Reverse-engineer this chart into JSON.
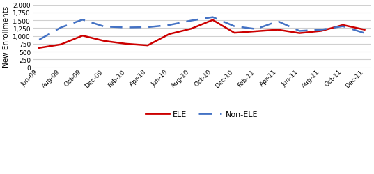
{
  "x_labels": [
    "Jun-09",
    "Aug-09",
    "Oct-09",
    "Dec-09",
    "Feb-10",
    "Apr-10",
    "Jun-10",
    "Aug-10",
    "Oct-10",
    "Dec-10",
    "Feb-11",
    "Apr-11",
    "Jun-11",
    "Aug-11",
    "Oct-11",
    "Dec-11"
  ],
  "ele_values": [
    620,
    730,
    1010,
    840,
    750,
    700,
    1060,
    1230,
    1510,
    1100,
    1150,
    1200,
    1090,
    1160,
    1350,
    1200
  ],
  "non_ele_values": [
    880,
    1270,
    1520,
    1300,
    1270,
    1280,
    1350,
    1490,
    1600,
    1310,
    1220,
    1470,
    1160,
    1200,
    1310,
    1090
  ],
  "ele_color": "#cc0000",
  "non_ele_color": "#4472c4",
  "ylabel": "New Enrollments",
  "ylim": [
    0,
    2000
  ],
  "yticks": [
    0,
    250,
    500,
    750,
    1000,
    1250,
    1500,
    1750,
    2000
  ],
  "fig_facecolor": "#ffffff",
  "ax_facecolor": "#ffffff",
  "grid_color": "#d0d0d0"
}
